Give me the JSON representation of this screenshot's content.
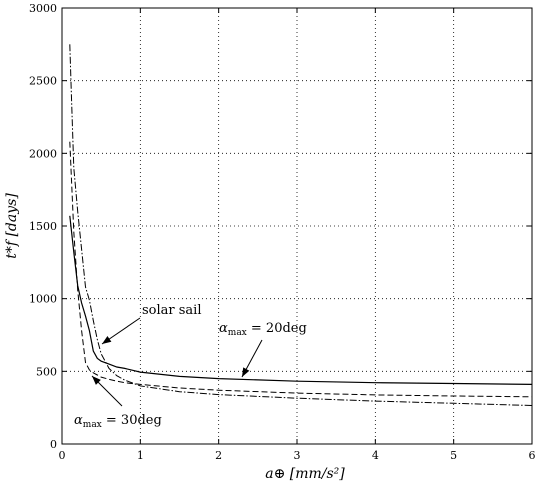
{
  "chart_data": {
    "type": "line",
    "xlabel": "a⊕ [mm/s²]",
    "ylabel": "t*f [days]",
    "xlim": [
      0,
      6
    ],
    "ylim": [
      0,
      3000
    ],
    "xticks": [
      0,
      1,
      2,
      3,
      4,
      5,
      6
    ],
    "yticks": [
      0,
      500,
      1000,
      1500,
      2000,
      2500,
      3000
    ],
    "grid": true,
    "series": [
      {
        "name": "αmax = 20deg",
        "style": "solid",
        "x": [
          0.1,
          0.15,
          0.2,
          0.25,
          0.3,
          0.35,
          0.4,
          0.45,
          0.5,
          0.6,
          0.7,
          0.8,
          1.0,
          1.5,
          2.0,
          3.0,
          4.0,
          5.0,
          6.0
        ],
        "y": [
          1570,
          1320,
          1090,
          970,
          880,
          780,
          640,
          590,
          570,
          550,
          530,
          520,
          495,
          465,
          450,
          432,
          422,
          416,
          410
        ]
      },
      {
        "name": "αmax = 30deg",
        "style": "dashed",
        "x": [
          0.1,
          0.15,
          0.2,
          0.25,
          0.3,
          0.35,
          0.4,
          0.45,
          0.5,
          0.6,
          0.7,
          0.8,
          1.0,
          1.5,
          2.0,
          3.0,
          4.0,
          5.0,
          6.0
        ],
        "y": [
          2080,
          1460,
          1060,
          780,
          560,
          510,
          490,
          475,
          460,
          445,
          432,
          422,
          410,
          385,
          370,
          350,
          338,
          330,
          325
        ]
      },
      {
        "name": "solar sail",
        "style": "dashdot",
        "x": [
          0.1,
          0.12,
          0.15,
          0.2,
          0.25,
          0.3,
          0.35,
          0.4,
          0.45,
          0.5,
          0.6,
          0.7,
          0.8,
          1.0,
          1.5,
          2.0,
          3.0,
          4.0,
          5.0,
          6.0
        ],
        "y": [
          2750,
          2400,
          1900,
          1600,
          1340,
          1080,
          990,
          850,
          720,
          620,
          520,
          470,
          440,
          400,
          360,
          340,
          315,
          295,
          280,
          265
        ]
      }
    ],
    "annotations": [
      {
        "text_main": "solar sail",
        "text_sub": ""
      },
      {
        "text_main": "α",
        "text_sub": "max",
        "text_tail": " = 20deg"
      },
      {
        "text_main": "α",
        "text_sub": "max",
        "text_tail": " = 30deg"
      }
    ]
  }
}
